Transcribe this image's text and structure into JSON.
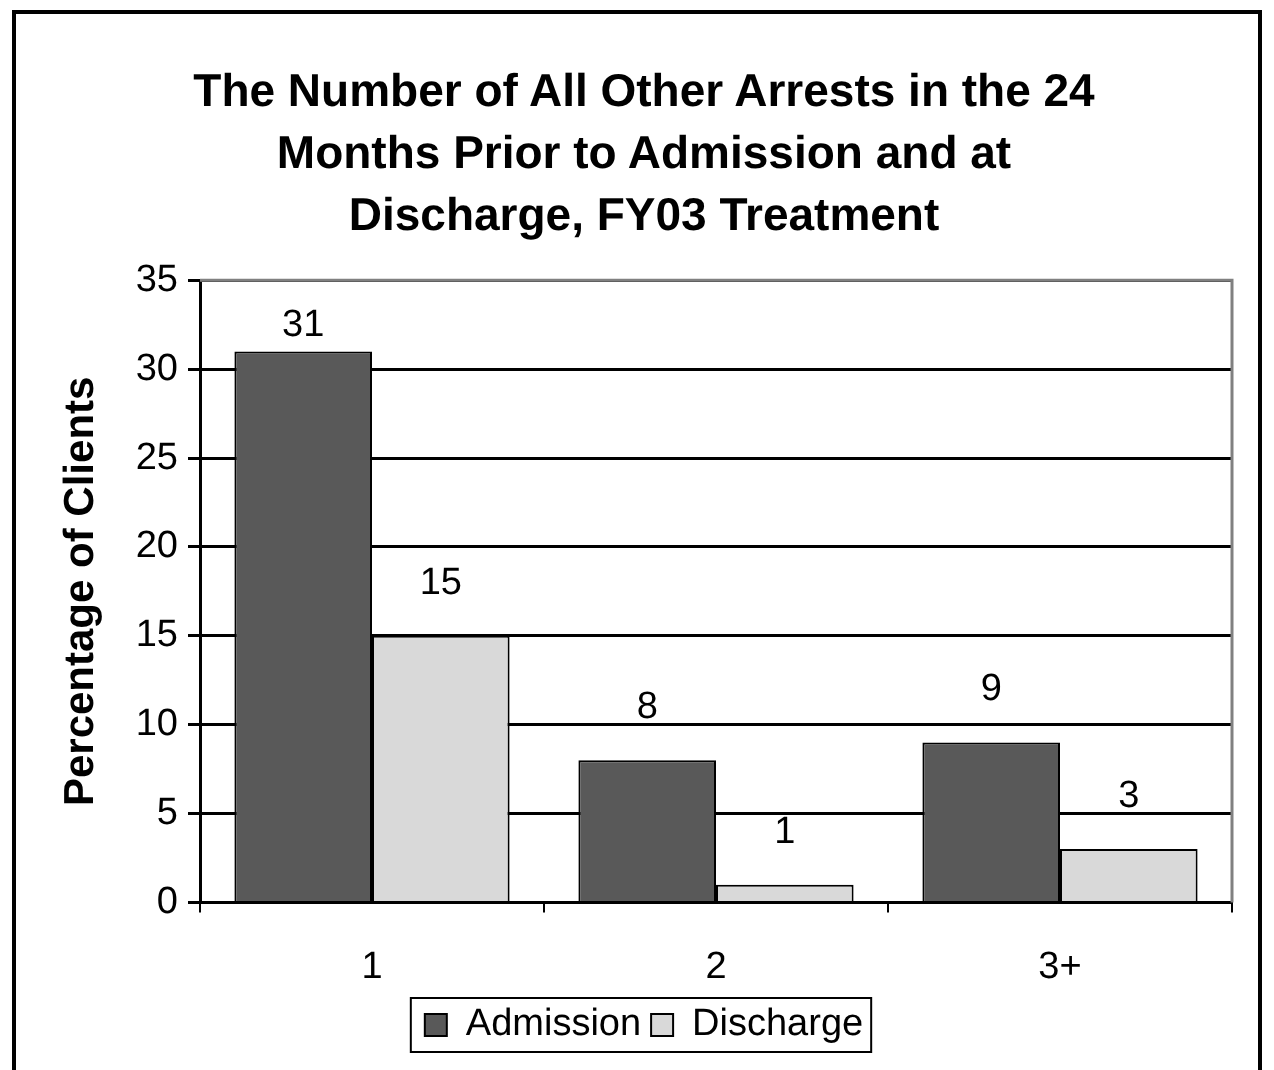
{
  "chart_data": {
    "type": "bar",
    "title": "The Number of All Other Arrests in the 24 Months Prior to Admission and at Discharge, FY03 Treatment",
    "ylabel": "Percentage of Clients",
    "categories": [
      "1",
      "2",
      "3+"
    ],
    "series": [
      {
        "name": "Admission",
        "color": "#595959",
        "values": [
          31,
          8,
          9
        ]
      },
      {
        "name": "Discharge",
        "color": "#d9d9d9",
        "values": [
          15,
          1,
          3
        ]
      }
    ],
    "ylim": [
      0,
      35
    ],
    "yticks": [
      0,
      5,
      10,
      15,
      20,
      25,
      30,
      35
    ],
    "grid": "y",
    "legend": "bottom",
    "data_labels": true
  }
}
